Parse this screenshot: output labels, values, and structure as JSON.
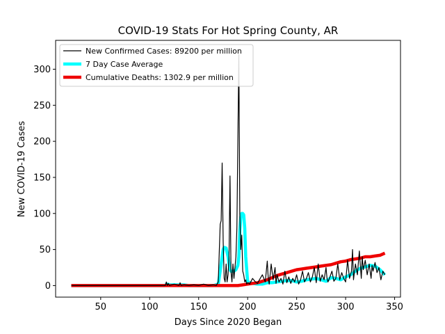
{
  "chart_data": {
    "type": "line",
    "title": "COVID-19 Stats For Hot Spring County, AR",
    "xlabel": "Days Since 2020 Began",
    "ylabel": "New COVID-19 Cases",
    "xlim": [
      4,
      356
    ],
    "ylim": [
      -16,
      340
    ],
    "xticks": [
      50,
      100,
      150,
      200,
      250,
      300,
      350
    ],
    "yticks": [
      0,
      50,
      100,
      150,
      200,
      250,
      300
    ],
    "grid": false,
    "legend_position": "top-left",
    "series": [
      {
        "name": "New Confirmed Cases: 89200 per million",
        "color": "#000000",
        "x": [
          20,
          30,
          40,
          50,
          60,
          70,
          80,
          90,
          100,
          110,
          116,
          117,
          118,
          119,
          120,
          125,
          130,
          131,
          132,
          135,
          140,
          145,
          150,
          155,
          160,
          165,
          168,
          170,
          172,
          173,
          174,
          175,
          176,
          177,
          178,
          179,
          180,
          181,
          182,
          183,
          184,
          185,
          186,
          187,
          188,
          189,
          190,
          191,
          192,
          193,
          194,
          195,
          196,
          197,
          198,
          199,
          200,
          202,
          205,
          208,
          210,
          212,
          215,
          218,
          220,
          221,
          222,
          224,
          226,
          228,
          229,
          230,
          232,
          234,
          236,
          238,
          240,
          242,
          244,
          246,
          248,
          250,
          252,
          254,
          256,
          258,
          260,
          262,
          264,
          266,
          268,
          270,
          272,
          274,
          276,
          278,
          280,
          281,
          282,
          284,
          286,
          288,
          290,
          292,
          294,
          296,
          298,
          300,
          302,
          304,
          306,
          307,
          308,
          310,
          312,
          314,
          316,
          317,
          318,
          320,
          322,
          324,
          326,
          327,
          328,
          330,
          332,
          334,
          336,
          338,
          340
        ],
        "values": [
          0,
          0,
          0,
          0,
          0,
          0,
          0,
          0,
          0,
          0,
          0,
          5,
          0,
          3,
          0,
          2,
          0,
          4,
          0,
          1,
          0,
          1,
          0,
          2,
          0,
          1,
          0,
          5,
          85,
          90,
          170,
          60,
          10,
          5,
          30,
          5,
          15,
          40,
          152,
          20,
          5,
          30,
          10,
          25,
          40,
          80,
          200,
          320,
          100,
          50,
          70,
          20,
          15,
          5,
          8,
          2,
          4,
          2,
          10,
          5,
          3,
          8,
          15,
          5,
          34,
          10,
          2,
          30,
          8,
          25,
          3,
          15,
          5,
          10,
          2,
          20,
          4,
          12,
          3,
          10,
          5,
          15,
          2,
          8,
          20,
          5,
          10,
          18,
          5,
          12,
          25,
          4,
          30,
          6,
          15,
          8,
          25,
          10,
          5,
          12,
          20,
          6,
          10,
          30,
          8,
          18,
          10,
          5,
          35,
          10,
          20,
          50,
          8,
          30,
          15,
          48,
          10,
          40,
          22,
          35,
          15,
          30,
          10,
          28,
          20,
          32,
          18,
          25,
          8,
          20,
          15
        ]
      },
      {
        "name": "7 Day Case Average",
        "color": "#00ffff",
        "x": [
          20,
          60,
          100,
          115,
          118,
          121,
          125,
          130,
          135,
          140,
          150,
          160,
          165,
          170,
          172,
          174,
          175,
          176,
          178,
          180,
          181,
          182,
          183,
          184,
          186,
          188,
          190,
          191,
          192,
          193,
          194,
          195,
          196,
          197,
          198,
          200,
          205,
          210,
          215,
          220,
          225,
          230,
          235,
          240,
          245,
          250,
          255,
          260,
          265,
          270,
          275,
          280,
          285,
          290,
          295,
          300,
          305,
          310,
          315,
          320,
          325,
          330,
          335,
          340
        ],
        "values": [
          0,
          0,
          0,
          0,
          2,
          1,
          1,
          1,
          1,
          0,
          0,
          0,
          0,
          2,
          20,
          40,
          50,
          53,
          52,
          40,
          30,
          22,
          20,
          20,
          20,
          22,
          28,
          40,
          75,
          95,
          100,
          100,
          98,
          80,
          40,
          5,
          3,
          2,
          2,
          4,
          4,
          5,
          6,
          7,
          7,
          5,
          6,
          8,
          9,
          10,
          8,
          6,
          11,
          10,
          8,
          12,
          15,
          20,
          24,
          26,
          28,
          27,
          22,
          15
        ]
      },
      {
        "name": "Cumulative Deaths: 1302.9 per million",
        "color": "#ee0000",
        "x": [
          20,
          60,
          100,
          140,
          180,
          190,
          195,
          200,
          205,
          210,
          215,
          220,
          225,
          230,
          235,
          240,
          245,
          250,
          255,
          260,
          265,
          270,
          275,
          280,
          285,
          290,
          295,
          300,
          305,
          310,
          315,
          320,
          325,
          330,
          335,
          340
        ],
        "values": [
          0,
          0,
          0,
          0,
          0,
          0,
          1,
          2,
          3,
          4,
          6,
          8,
          11,
          14,
          16,
          18,
          20,
          22,
          23,
          24,
          25,
          26,
          27,
          28,
          29,
          31,
          33,
          34,
          36,
          37,
          38,
          40,
          40,
          41,
          42,
          45
        ]
      }
    ]
  }
}
